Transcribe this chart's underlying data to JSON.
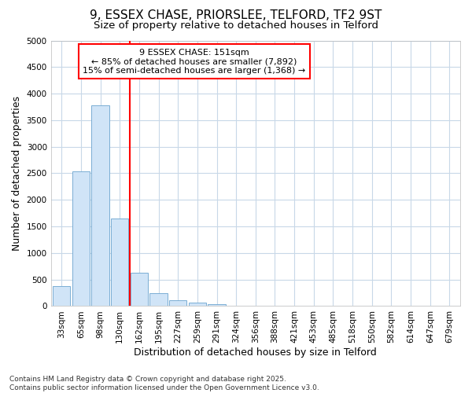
{
  "title_line1": "9, ESSEX CHASE, PRIORSLEE, TELFORD, TF2 9ST",
  "title_line2": "Size of property relative to detached houses in Telford",
  "xlabel": "Distribution of detached houses by size in Telford",
  "ylabel": "Number of detached properties",
  "categories": [
    "33sqm",
    "65sqm",
    "98sqm",
    "130sqm",
    "162sqm",
    "195sqm",
    "227sqm",
    "259sqm",
    "291sqm",
    "324sqm",
    "356sqm",
    "388sqm",
    "421sqm",
    "453sqm",
    "485sqm",
    "518sqm",
    "550sqm",
    "582sqm",
    "614sqm",
    "647sqm",
    "679sqm"
  ],
  "values": [
    380,
    2540,
    3780,
    1650,
    625,
    240,
    105,
    60,
    30,
    10,
    5,
    0,
    0,
    0,
    0,
    0,
    0,
    0,
    0,
    0,
    0
  ],
  "bar_color": "#d0e4f7",
  "bar_edge_color": "#7aadd4",
  "vline_color": "red",
  "vline_pos": 3.5,
  "annotation_text": "9 ESSEX CHASE: 151sqm\n← 85% of detached houses are smaller (7,892)\n15% of semi-detached houses are larger (1,368) →",
  "annotation_box_facecolor": "white",
  "annotation_box_edgecolor": "red",
  "ylim": [
    0,
    5000
  ],
  "yticks": [
    0,
    500,
    1000,
    1500,
    2000,
    2500,
    3000,
    3500,
    4000,
    4500,
    5000
  ],
  "bg_color": "#ffffff",
  "plot_bg_color": "#ffffff",
  "grid_color": "#c8d8e8",
  "footnote": "Contains HM Land Registry data © Crown copyright and database right 2025.\nContains public sector information licensed under the Open Government Licence v3.0.",
  "title_fontsize": 11,
  "subtitle_fontsize": 9.5,
  "axis_label_fontsize": 9,
  "tick_fontsize": 7.5,
  "annotation_fontsize": 8,
  "footnote_fontsize": 6.5
}
